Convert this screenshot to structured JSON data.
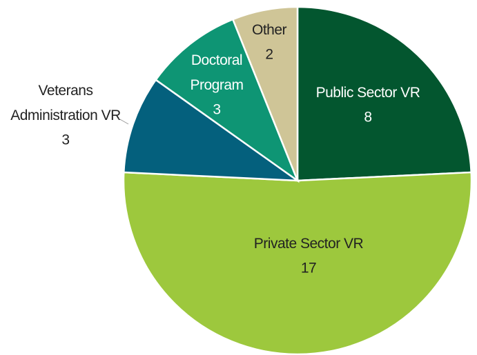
{
  "chart_data": {
    "type": "pie",
    "categories": [
      "Public Sector VR",
      "Private Sector VR",
      "Veterans Administration VR",
      "Doctoral Program",
      "Other"
    ],
    "values": [
      8,
      17,
      3,
      3,
      2
    ],
    "colors": [
      "#03562f",
      "#9dc83d",
      "#04607d",
      "#0e9574",
      "#cfc597"
    ]
  }
}
